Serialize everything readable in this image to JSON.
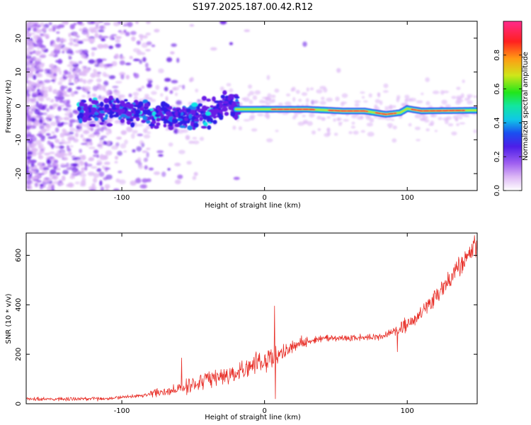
{
  "title": "S197.2025.187.00.42.R12",
  "colors": {
    "snr_line": "#e8312a",
    "colormap": [
      "#ffffff",
      "#ddb8f5",
      "#a060f0",
      "#6a1fe6",
      "#2f1ee6",
      "#1a7ff0",
      "#10e6e6",
      "#16e64a",
      "#cfe61a",
      "#ff7a14",
      "#ff1e28",
      "#ff2a8c"
    ]
  },
  "chart_data": [
    {
      "type": "heatmap",
      "xlabel": "Height of straight line (km)",
      "ylabel": "Frequency (Hz)",
      "xlim": [
        -167,
        149
      ],
      "ylim": [
        -25,
        25
      ],
      "x_ticks": [
        -100,
        0,
        100
      ],
      "y_ticks": [
        -20,
        -10,
        0,
        10,
        20
      ],
      "ridge": {
        "description_points": [
          {
            "x": -125,
            "y": -1.5
          },
          {
            "x": -100,
            "y": -1
          },
          {
            "x": -80,
            "y": -2
          },
          {
            "x": -60,
            "y": -3
          },
          {
            "x": -40,
            "y": -2.5
          },
          {
            "x": -25,
            "y": 1
          },
          {
            "x": -20,
            "y": -1
          },
          {
            "x": 0,
            "y": -1
          },
          {
            "x": 30,
            "y": -1
          },
          {
            "x": 55,
            "y": -1.5
          },
          {
            "x": 70,
            "y": -1.5
          },
          {
            "x": 85,
            "y": -2.5
          },
          {
            "x": 95,
            "y": -2
          },
          {
            "x": 100,
            "y": -0.8
          },
          {
            "x": 110,
            "y": -1.5
          },
          {
            "x": 149,
            "y": -1.3
          }
        ]
      },
      "colorbar": {
        "label": "Normalized spectral amplitude",
        "range": [
          0,
          1
        ],
        "ticks": [
          0.0,
          0.2,
          0.4,
          0.6,
          0.8
        ]
      }
    },
    {
      "type": "line",
      "xlabel": "Height of straight line (km)",
      "ylabel": "SNR (10 * v/v)",
      "xlim": [
        -167,
        149
      ],
      "ylim": [
        0,
        690
      ],
      "x_ticks": [
        -100,
        0,
        100
      ],
      "y_ticks": [
        0,
        200,
        400,
        600
      ],
      "series": [
        {
          "trend_points": [
            {
              "x": -167,
              "y": 20
            },
            {
              "x": -140,
              "y": 18
            },
            {
              "x": -110,
              "y": 20
            },
            {
              "x": -90,
              "y": 30
            },
            {
              "x": -70,
              "y": 50
            },
            {
              "x": -60,
              "y": 65
            },
            {
              "x": -40,
              "y": 95
            },
            {
              "x": -20,
              "y": 120
            },
            {
              "x": -5,
              "y": 165
            },
            {
              "x": 5,
              "y": 185
            },
            {
              "x": 15,
              "y": 215
            },
            {
              "x": 25,
              "y": 245
            },
            {
              "x": 40,
              "y": 265
            },
            {
              "x": 60,
              "y": 265
            },
            {
              "x": 80,
              "y": 270
            },
            {
              "x": 95,
              "y": 300
            },
            {
              "x": 105,
              "y": 340
            },
            {
              "x": 115,
              "y": 400
            },
            {
              "x": 125,
              "y": 470
            },
            {
              "x": 135,
              "y": 545
            },
            {
              "x": 145,
              "y": 620
            },
            {
              "x": 149,
              "y": 640
            }
          ],
          "spikes": [
            {
              "x": -58,
              "y": 185
            },
            {
              "x": 7,
              "y": 395
            },
            {
              "x": 7.5,
              "y": 20
            },
            {
              "x": 93,
              "y": 210
            },
            {
              "x": 147,
              "y": 680
            }
          ]
        }
      ]
    }
  ]
}
